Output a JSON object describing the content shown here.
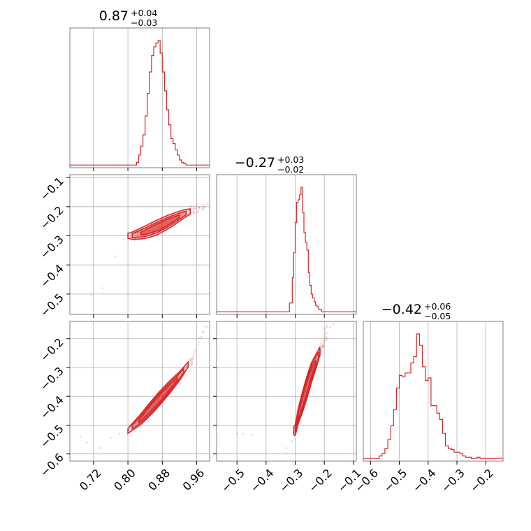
{
  "chart_data": {
    "type": "corner",
    "color": "#d62728",
    "grid": true,
    "parameters": [
      {
        "title": {
          "median": "0.87",
          "plus": "+0.04",
          "minus": "−0.03"
        },
        "range": [
          0.665,
          0.99
        ],
        "ticks": [
          "0.72",
          "0.80",
          "0.88",
          "0.96"
        ],
        "tick_values": [
          0.72,
          0.8,
          0.88,
          0.96
        ],
        "hist_edges": [
          0.665,
          0.82,
          0.825,
          0.83,
          0.835,
          0.84,
          0.845,
          0.85,
          0.855,
          0.86,
          0.865,
          0.87,
          0.875,
          0.88,
          0.885,
          0.89,
          0.895,
          0.9,
          0.905,
          0.91,
          0.915,
          0.92,
          0.925,
          0.93,
          0.935,
          0.99
        ],
        "hist_counts": [
          1,
          3,
          9,
          16,
          25,
          40,
          58,
          75,
          88,
          95,
          98,
          100,
          90,
          75,
          60,
          45,
          33,
          22,
          18,
          13,
          9,
          5,
          3,
          2,
          1
        ]
      },
      {
        "title": {
          "median": "−0.27",
          "plus": "+0.03",
          "minus": "−0.02"
        },
        "range": [
          -0.57,
          -0.09
        ],
        "ticks": [
          "−0.5",
          "−0.4",
          "−0.3",
          "−0.2",
          "−0.1"
        ],
        "tick_values": [
          -0.5,
          -0.4,
          -0.3,
          -0.2,
          -0.1
        ],
        "hist_edges": [
          -0.57,
          -0.32,
          -0.31,
          -0.305,
          -0.3,
          -0.295,
          -0.29,
          -0.285,
          -0.28,
          -0.275,
          -0.27,
          -0.265,
          -0.26,
          -0.255,
          -0.25,
          -0.245,
          -0.24,
          -0.235,
          -0.23,
          -0.225,
          -0.22,
          -0.21,
          -0.2,
          -0.09
        ],
        "hist_counts": [
          1,
          8,
          28,
          48,
          72,
          88,
          90,
          94,
          100,
          80,
          64,
          56,
          50,
          32,
          22,
          15,
          12,
          9,
          6,
          5,
          3,
          1,
          1
        ]
      },
      {
        "title": {
          "median": "−0.42",
          "plus": "+0.06",
          "minus": "−0.05"
        },
        "range": [
          -0.625,
          -0.14
        ],
        "ticks": [
          "−0.6",
          "−0.5",
          "−0.4",
          "−0.3",
          "−0.2"
        ],
        "tick_values": [
          -0.6,
          -0.5,
          -0.4,
          -0.3,
          -0.2
        ],
        "hist_edges": [
          -0.625,
          -0.57,
          -0.56,
          -0.55,
          -0.54,
          -0.53,
          -0.52,
          -0.51,
          -0.5,
          -0.49,
          -0.48,
          -0.47,
          -0.46,
          -0.45,
          -0.44,
          -0.43,
          -0.42,
          -0.41,
          -0.4,
          -0.39,
          -0.38,
          -0.37,
          -0.36,
          -0.35,
          -0.34,
          -0.33,
          -0.32,
          -0.31,
          -0.3,
          -0.29,
          -0.28,
          -0.27,
          -0.26,
          -0.25,
          -0.24,
          -0.23,
          -0.22,
          -0.21,
          -0.2,
          -0.14
        ],
        "hist_counts": [
          1,
          3,
          5,
          9,
          16,
          27,
          40,
          57,
          67,
          66,
          69,
          69,
          77,
          82,
          100,
          91,
          74,
          63,
          65,
          43,
          43,
          37,
          32,
          21,
          11,
          9,
          8,
          6,
          6,
          5,
          3,
          2,
          2,
          1,
          1,
          2,
          1,
          1,
          1
        ]
      }
    ],
    "pairs": [
      {
        "x_param": 0,
        "y_param": 1,
        "y_ticks": [
          "−0.1",
          "−0.2",
          "−0.3",
          "−0.4",
          "−0.5"
        ],
        "y_tick_values": [
          -0.1,
          -0.2,
          -0.3,
          -0.4,
          -0.5
        ],
        "ridge": [
          [
            0.81,
            -0.3
          ],
          [
            0.84,
            -0.288
          ],
          [
            0.87,
            -0.27
          ],
          [
            0.9,
            -0.248
          ],
          [
            0.93,
            -0.225
          ],
          [
            0.98,
            -0.195
          ]
        ],
        "outliers": [
          [
            0.715,
            -0.505
          ],
          [
            0.74,
            -0.48
          ],
          [
            0.77,
            -0.37
          ],
          [
            0.96,
            -0.22
          ],
          [
            0.975,
            -0.205
          ],
          [
            0.985,
            -0.19
          ],
          [
            0.79,
            -0.31
          ]
        ],
        "contour_widths": [
          [
            0.83,
            0.92,
            0.012
          ],
          [
            0.81,
            0.935,
            0.018
          ],
          [
            0.8,
            0.945,
            0.025
          ]
        ]
      },
      {
        "x_param": 0,
        "y_param": 2,
        "y_ticks": [
          "−0.2",
          "−0.3",
          "−0.4",
          "−0.5",
          "−0.6"
        ],
        "y_tick_values": [
          -0.2,
          -0.3,
          -0.4,
          -0.5,
          -0.6
        ],
        "ridge": [
          [
            0.8,
            -0.52
          ],
          [
            0.83,
            -0.48
          ],
          [
            0.86,
            -0.43
          ],
          [
            0.89,
            -0.38
          ],
          [
            0.92,
            -0.33
          ],
          [
            0.95,
            -0.27
          ],
          [
            0.98,
            -0.15
          ]
        ],
        "outliers": [
          [
            0.69,
            -0.54
          ],
          [
            0.705,
            -0.56
          ],
          [
            0.735,
            -0.58
          ],
          [
            0.76,
            -0.545
          ],
          [
            0.975,
            -0.175
          ],
          [
            0.985,
            -0.16
          ],
          [
            0.78,
            -0.53
          ]
        ],
        "contour_widths": [
          [
            0.825,
            0.915,
            0.012
          ],
          [
            0.81,
            0.93,
            0.018
          ],
          [
            0.8,
            0.94,
            0.024
          ]
        ]
      },
      {
        "x_param": 1,
        "y_param": 2,
        "y_ticks": [
          "",
          "",
          "",
          "",
          ""
        ],
        "y_tick_values": [
          -0.2,
          -0.3,
          -0.4,
          -0.5,
          -0.6
        ],
        "ridge": [
          [
            -0.3,
            -0.52
          ],
          [
            -0.29,
            -0.47
          ],
          [
            -0.275,
            -0.42
          ],
          [
            -0.26,
            -0.37
          ],
          [
            -0.245,
            -0.32
          ],
          [
            -0.225,
            -0.27
          ],
          [
            -0.19,
            -0.17
          ]
        ],
        "outliers": [
          [
            -0.5,
            -0.53
          ],
          [
            -0.48,
            -0.53
          ],
          [
            -0.45,
            -0.535
          ],
          [
            -0.33,
            -0.58
          ],
          [
            -0.31,
            -0.555
          ],
          [
            -0.18,
            -0.16
          ],
          [
            -0.17,
            -0.15
          ]
        ],
        "contour_widths": [
          [
            -0.295,
            -0.23,
            0.018
          ],
          [
            -0.3,
            -0.22,
            0.028
          ],
          [
            -0.305,
            -0.215,
            0.038
          ]
        ]
      }
    ]
  }
}
